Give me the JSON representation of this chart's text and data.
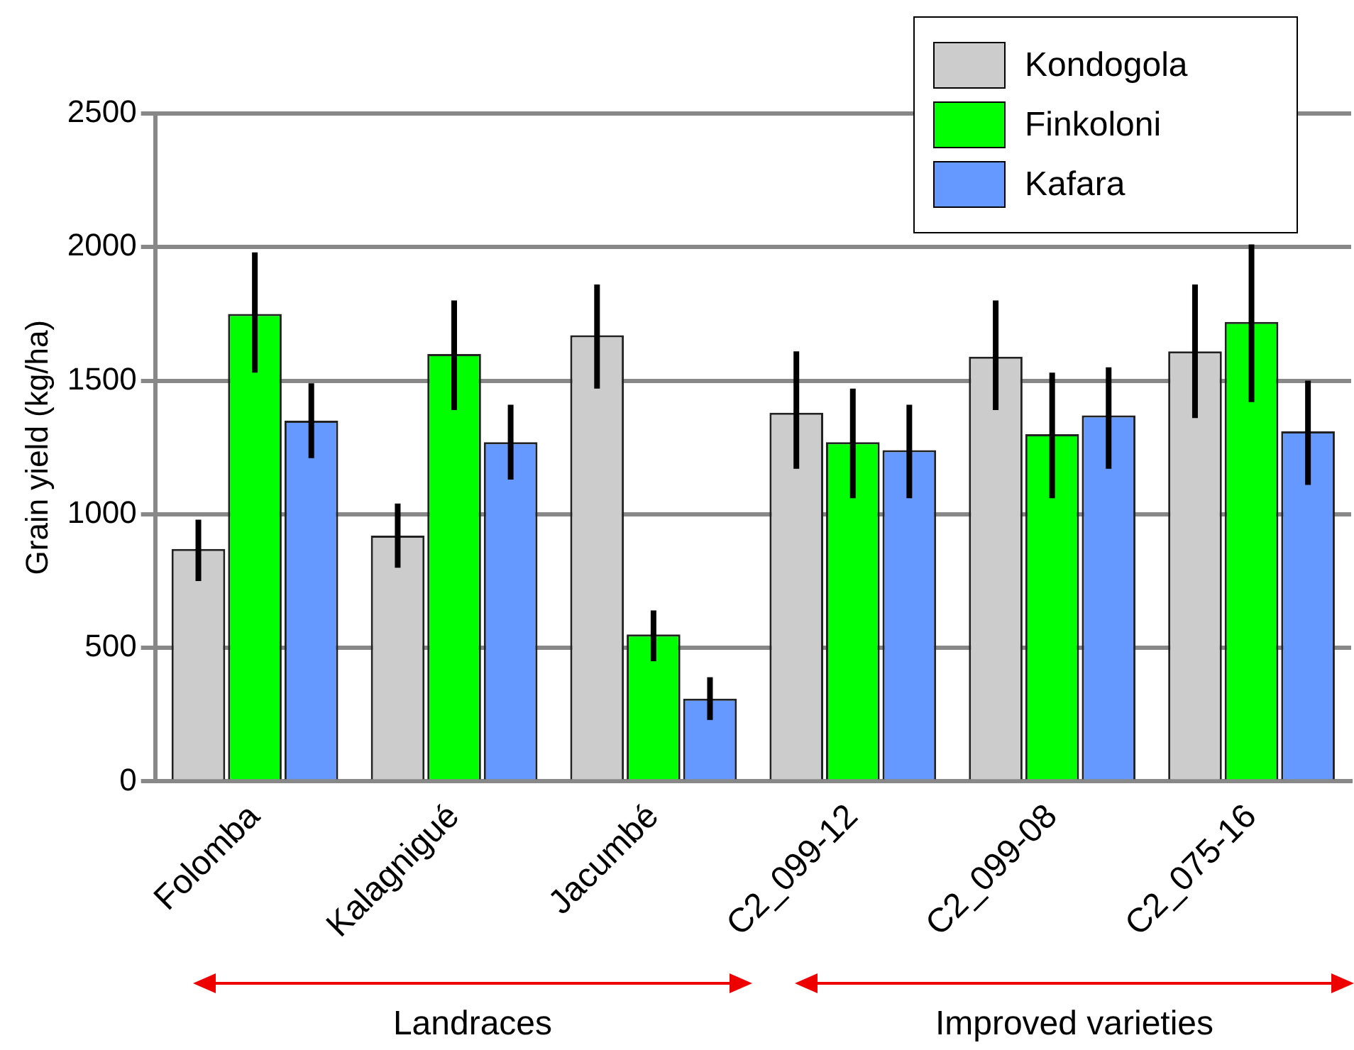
{
  "chart_data": {
    "type": "bar",
    "ylabel": "Grain yield (kg/ha)",
    "categories": [
      "Folomba",
      "Kalagnigué",
      "Jacumbé",
      "C2_099-12",
      "C2_099-08",
      "C2_075-16"
    ],
    "series": [
      {
        "name": "Kondogola",
        "color": "#cccccc",
        "values": [
          870,
          920,
          1670,
          1380,
          1590,
          1610
        ],
        "errors": [
          [
            750,
            980
          ],
          [
            800,
            1040
          ],
          [
            1470,
            1860
          ],
          [
            1170,
            1610
          ],
          [
            1390,
            1800
          ],
          [
            1360,
            1860
          ]
        ]
      },
      {
        "name": "Finkoloni",
        "color": "#00ff00",
        "values": [
          1750,
          1600,
          550,
          1270,
          1300,
          1720
        ],
        "errors": [
          [
            1530,
            1980
          ],
          [
            1390,
            1800
          ],
          [
            450,
            640
          ],
          [
            1060,
            1470
          ],
          [
            1060,
            1530
          ],
          [
            1420,
            2010
          ]
        ]
      },
      {
        "name": "Kafara",
        "color": "#6699ff",
        "values": [
          1350,
          1270,
          310,
          1240,
          1370,
          1310
        ],
        "errors": [
          [
            1210,
            1490
          ],
          [
            1130,
            1410
          ],
          [
            230,
            390
          ],
          [
            1060,
            1410
          ],
          [
            1170,
            1550
          ],
          [
            1110,
            1500
          ]
        ]
      }
    ],
    "ylim": [
      0,
      2500
    ],
    "yticks": [
      0,
      500,
      1000,
      1500,
      2000,
      2500
    ],
    "grid": "y",
    "legend": "top right",
    "annotations": [
      "Landraces",
      "Improved varieties"
    ]
  }
}
